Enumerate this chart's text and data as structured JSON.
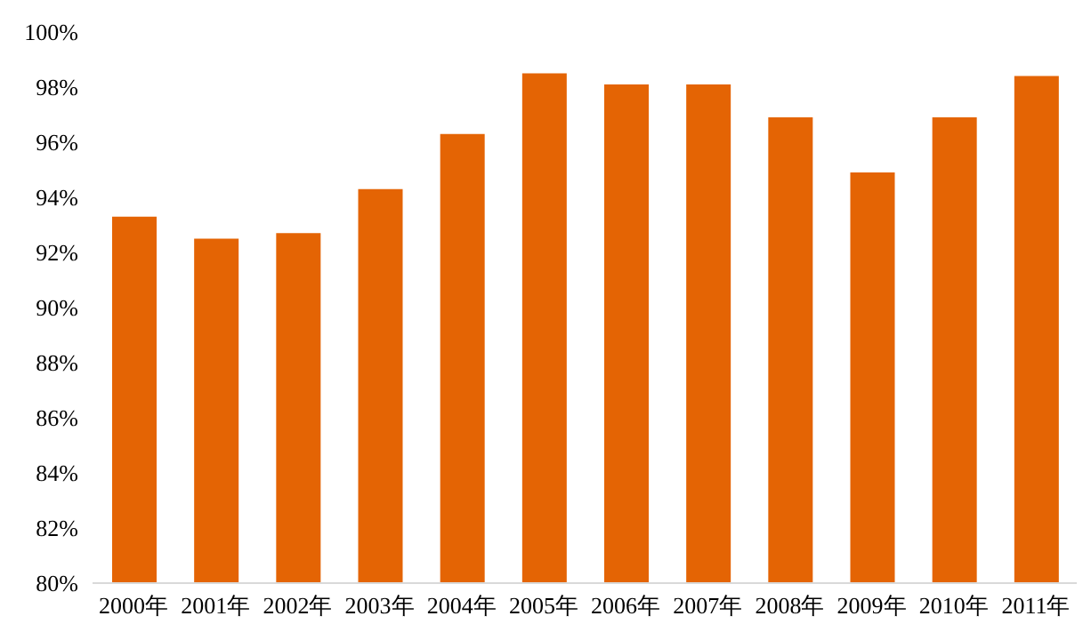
{
  "chart_data": {
    "type": "bar",
    "categories": [
      "2000年",
      "2001年",
      "2002年",
      "2003年",
      "2004年",
      "2005年",
      "2006年",
      "2007年",
      "2008年",
      "2009年",
      "2010年",
      "2011年"
    ],
    "values": [
      93.3,
      92.5,
      92.7,
      94.3,
      96.3,
      98.5,
      98.1,
      98.1,
      96.9,
      94.9,
      96.9,
      98.4
    ],
    "color": "#e46404",
    "ylim": [
      80,
      100
    ],
    "yticks": [
      {
        "value": 80,
        "label": "80%"
      },
      {
        "value": 82,
        "label": "82%"
      },
      {
        "value": 84,
        "label": "84%"
      },
      {
        "value": 86,
        "label": "86%"
      },
      {
        "value": 88,
        "label": "88%"
      },
      {
        "value": 90,
        "label": "90%"
      },
      {
        "value": 92,
        "label": "92%"
      },
      {
        "value": 94,
        "label": "94%"
      },
      {
        "value": 96,
        "label": "96%"
      },
      {
        "value": 98,
        "label": "98%"
      },
      {
        "value": 100,
        "label": "100%"
      }
    ],
    "grid": false
  }
}
